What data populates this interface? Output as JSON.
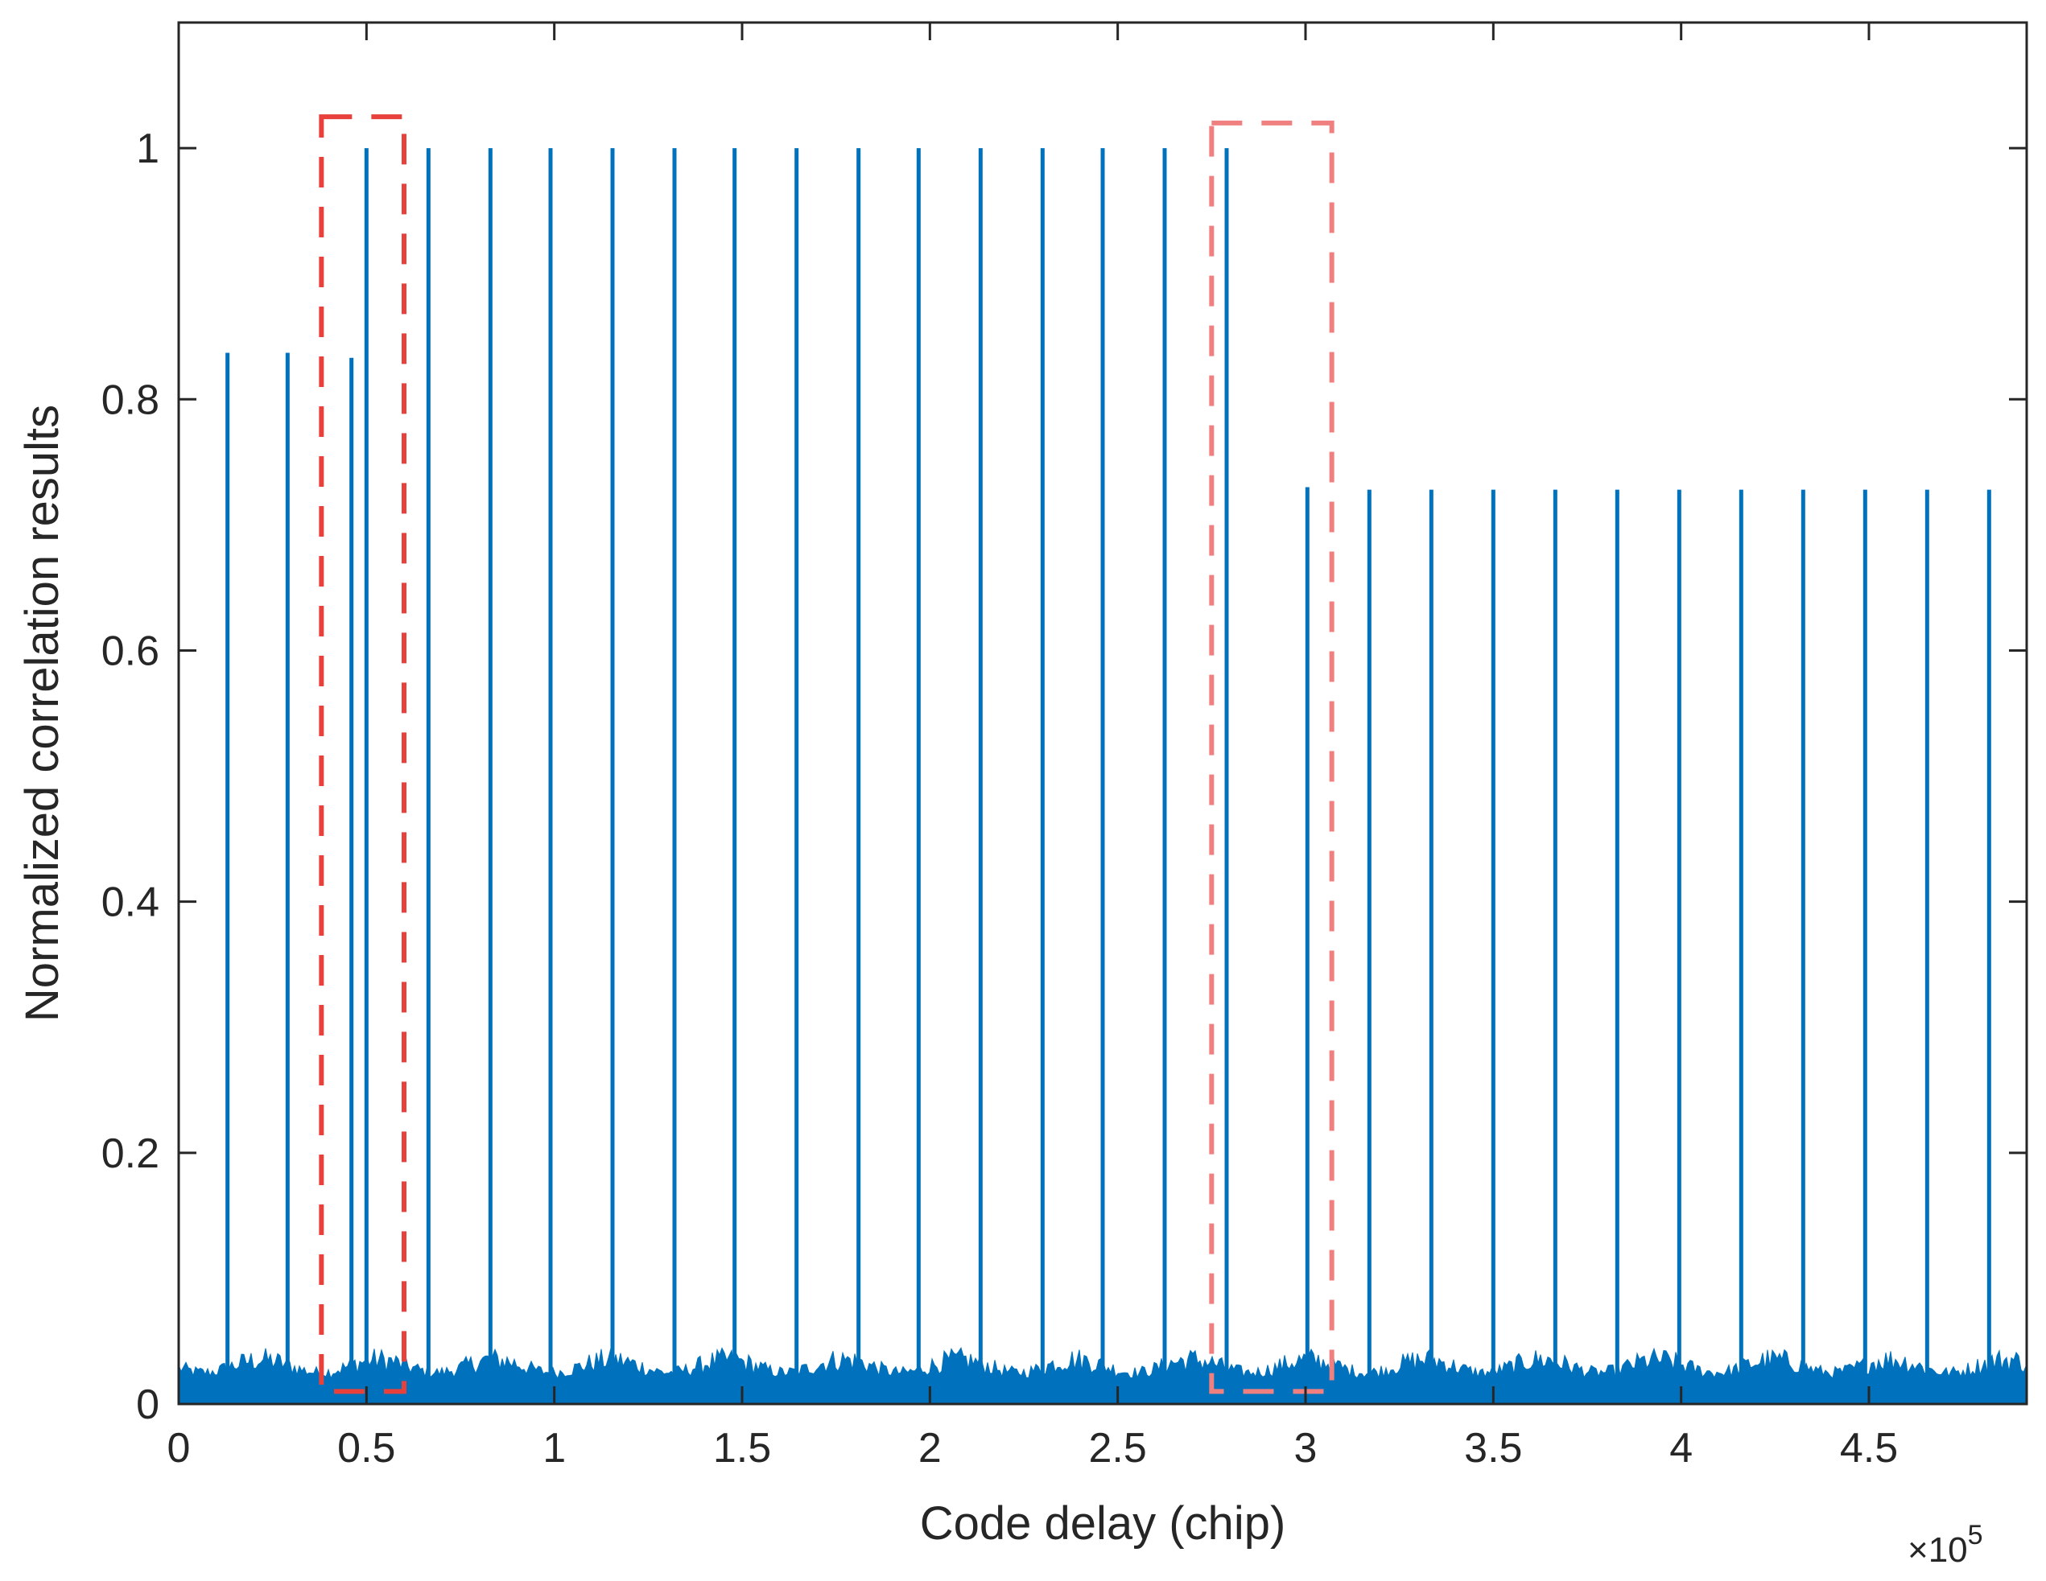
{
  "chart_data": {
    "type": "line",
    "xlabel": "Code delay (chip)",
    "ylabel": "Normalized correlation results",
    "x_multiplier": "×10",
    "x_multiplier_exponent": "5",
    "xlim": [
      0,
      4.92
    ],
    "ylim": [
      0,
      1.1
    ],
    "x_ticks": [
      0,
      0.5,
      1,
      1.5,
      2,
      2.5,
      3,
      3.5,
      4,
      4.5
    ],
    "x_tick_labels": [
      "0",
      "0.5",
      "1",
      "1.5",
      "2",
      "2.5",
      "3",
      "3.5",
      "4",
      "4.5"
    ],
    "y_ticks": [
      0,
      0.2,
      0.4,
      0.6,
      0.8,
      1
    ],
    "y_tick_labels": [
      "0",
      "0.2",
      "0.4",
      "0.6",
      "0.8",
      "1"
    ],
    "grid": false,
    "series": [
      {
        "color": "#0072bd",
        "x": [
          0.13,
          0.29,
          0.46,
          0.5,
          0.665,
          0.83,
          0.99,
          1.155,
          1.32,
          1.48,
          1.645,
          1.81,
          1.97,
          2.135,
          2.3,
          2.46,
          2.625,
          2.79,
          3.005,
          3.17,
          3.335,
          3.5,
          3.665,
          3.83,
          3.995,
          4.16,
          4.325,
          4.49,
          4.655,
          4.82
        ],
        "values": [
          0.837,
          0.837,
          0.833,
          1.0,
          1.0,
          1.0,
          1.0,
          1.0,
          1.0,
          1.0,
          1.0,
          1.0,
          1.0,
          1.0,
          1.0,
          1.0,
          1.0,
          1.0,
          0.73,
          0.728,
          0.728,
          0.728,
          0.728,
          0.728,
          0.728,
          0.728,
          0.728,
          0.728,
          0.728,
          0.728
        ],
        "noise_floor": [
          0.015,
          0.045
        ]
      }
    ],
    "highlight_boxes": [
      {
        "x_range": [
          0.38,
          0.6
        ],
        "y_range": [
          0.01,
          1.025
        ],
        "color": "#e8413c",
        "style": "dashed"
      },
      {
        "x_range": [
          2.75,
          3.07
        ],
        "y_range": [
          0.01,
          1.02
        ],
        "color": "#f08080",
        "style": "dashed"
      }
    ]
  }
}
